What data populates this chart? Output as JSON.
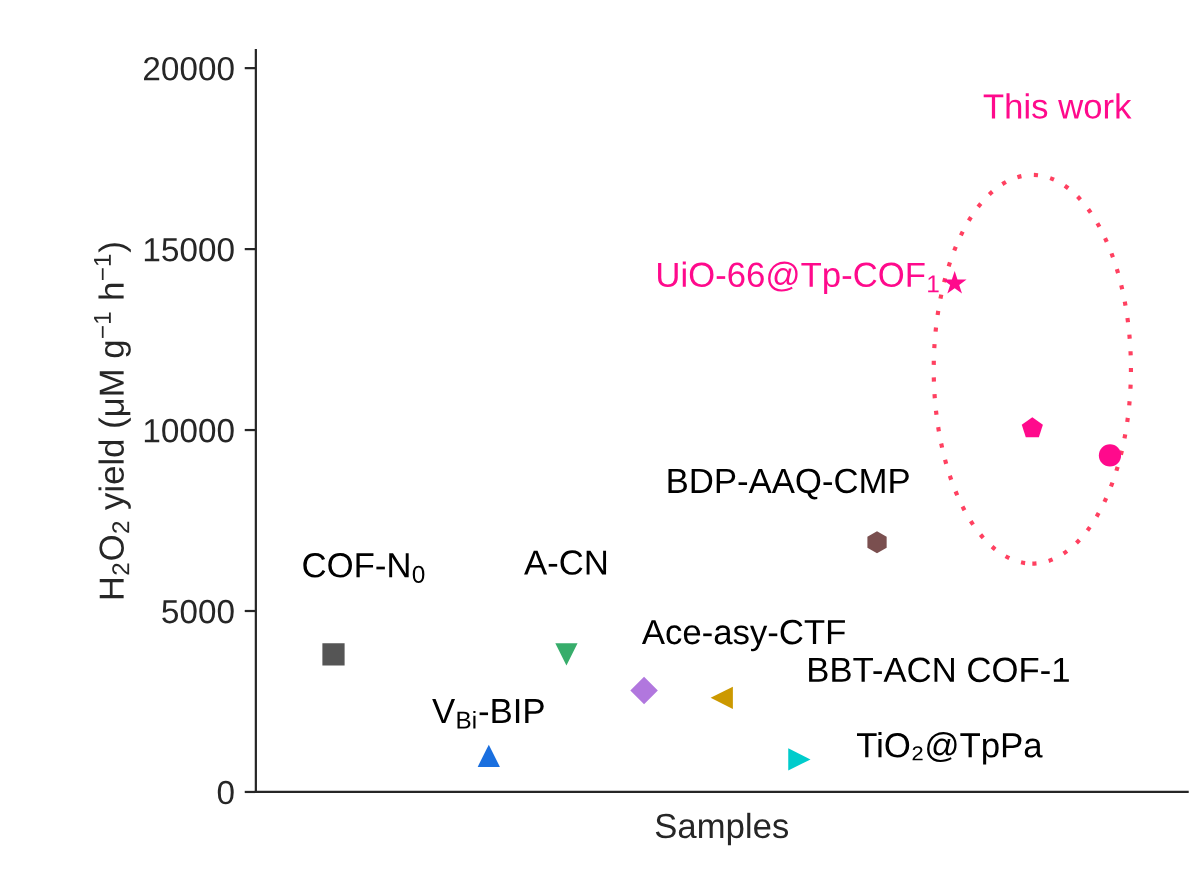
{
  "chart_data": {
    "type": "scatter",
    "xlabel": "Samples",
    "ylabel": "H$_{2}$O$_{2}$ yield (μM g$^{−1}$ h$^{−1}$)",
    "categories": [
      null,
      null,
      null,
      null,
      null,
      null,
      null,
      null,
      null,
      null,
      null
    ],
    "ylim": [
      0,
      20500
    ],
    "yticks": [
      0,
      5000,
      10000,
      15000,
      20000
    ],
    "grid": false,
    "legend": false,
    "series": [
      {
        "name": "COF-N$_{0}$",
        "color": "#555555",
        "marker": "square",
        "values": [
          3800,
          null,
          null,
          null,
          null,
          null,
          null,
          null,
          null,
          null,
          null
        ]
      },
      {
        "name": "V$_{Bi}$-BIP",
        "color": "#1a6fdf",
        "marker": "triangle",
        "values": [
          null,
          null,
          1000,
          null,
          null,
          null,
          null,
          null,
          null,
          null,
          null
        ]
      },
      {
        "name": "A-CN",
        "color": "#37ad6b",
        "marker": "triangle_down",
        "values": [
          null,
          null,
          null,
          3800,
          null,
          null,
          null,
          null,
          null,
          null,
          null
        ]
      },
      {
        "name": "Ace-asy-CTF",
        "color": "#b177de",
        "marker": "diamond",
        "values": [
          null,
          null,
          null,
          null,
          2800,
          null,
          null,
          null,
          null,
          null,
          null
        ]
      },
      {
        "name": "BBT-ACN COF-1",
        "color": "#cc9900",
        "marker": "triangle_left",
        "values": [
          null,
          null,
          null,
          null,
          null,
          2600,
          null,
          null,
          null,
          null,
          null
        ]
      },
      {
        "name": "TiO₂@TpPa",
        "color": "#00cccc",
        "marker": "triangle_right",
        "values": [
          null,
          null,
          null,
          null,
          null,
          null,
          900,
          null,
          null,
          null,
          null
        ]
      },
      {
        "name": "BDP-AAQ-CMP",
        "color": "#7a4f4f",
        "values": [
          null,
          null,
          null,
          null,
          null,
          null,
          null,
          6900,
          null,
          null,
          null
        ]
      },
      {
        "name": "UiO-66@Tp-COF$_{1}$",
        "color": "#ff0a8c",
        "marker": "star",
        "values": [
          null,
          null,
          null,
          null,
          null,
          null,
          null,
          null,
          14050,
          null,
          null
        ]
      },
      {
        "color": "#ff0a8c",
        "values": [
          null,
          null,
          null,
          null,
          null,
          null,
          null,
          null,
          null,
          10050,
          null
        ]
      },
      {
        "color": "#ff0a8c",
        "marker": "circle",
        "values": [
          null,
          null,
          null,
          null,
          null,
          null,
          null,
          null,
          null,
          null,
          9300
        ]
      }
    ],
    "annotations": [
      "This work"
    ]
  }
}
